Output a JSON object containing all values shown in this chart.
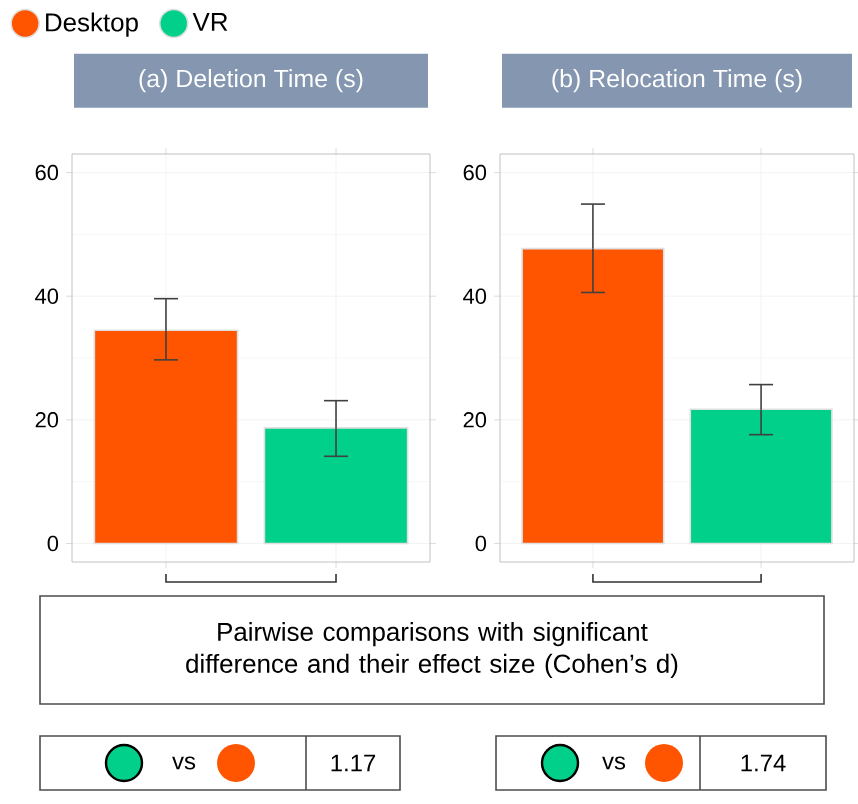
{
  "chart_data": [
    {
      "type": "bar",
      "title": "(a) Deletion Time (s)",
      "categories": [
        null
      ],
      "series": [
        {
          "name": "Desktop",
          "color": "#ff5500",
          "values": [
            34.5
          ],
          "errors": [
            [
              29.7,
              39.6
            ]
          ]
        },
        {
          "name": "VR",
          "color": "#00d08a",
          "values": [
            18.7
          ],
          "errors": [
            [
              14.1,
              23.1
            ]
          ]
        }
      ],
      "ylim": [
        -3,
        63
      ],
      "yticks": [
        0,
        20,
        40,
        60
      ],
      "grid": true,
      "legend": "top left",
      "annotations": [
        "Pairwise comparisons with significant difference and their effect size (Cohen’s d)",
        "vs",
        "1.17"
      ]
    },
    {
      "type": "bar",
      "title": "(b) Relocation Time (s)",
      "categories": [
        null
      ],
      "series": [
        {
          "color": "#ff5500",
          "values": [
            47.7
          ],
          "errors": [
            [
              40.6,
              54.9
            ]
          ]
        },
        {
          "color": "#00d08a",
          "values": [
            21.7
          ],
          "errors": [
            [
              17.6,
              25.7
            ]
          ]
        }
      ],
      "ylim": [
        -3,
        63
      ],
      "yticks": [
        0,
        20,
        40,
        60
      ],
      "grid": true,
      "annotations": [
        "vs",
        "1.74"
      ]
    }
  ]
}
